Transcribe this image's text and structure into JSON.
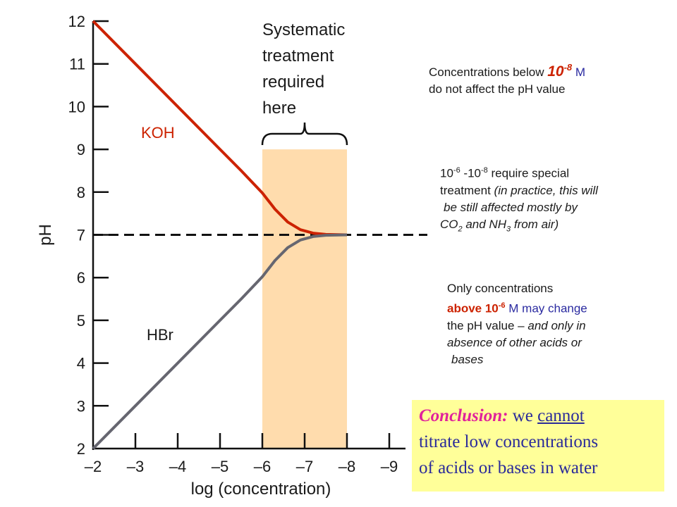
{
  "chart_data": {
    "type": "line",
    "xlabel": "log (concentration)",
    "ylabel": "pH",
    "x_ticks": [
      "–2",
      "–3",
      "–4",
      "–5",
      "–6",
      "–7",
      "–8",
      "–9"
    ],
    "x_tick_values": [
      -2,
      -3,
      -4,
      -5,
      -6,
      -7,
      -8,
      -9
    ],
    "y_ticks": [
      "2",
      "3",
      "4",
      "5",
      "6",
      "7",
      "8",
      "9",
      "10",
      "11",
      "12"
    ],
    "y_tick_values": [
      2,
      3,
      4,
      5,
      6,
      7,
      8,
      9,
      10,
      11,
      12
    ],
    "xlim": [
      -2,
      -9
    ],
    "ylim": [
      2,
      12
    ],
    "series": [
      {
        "name": "KOH",
        "color": "#cc2200",
        "x": [
          -2,
          -3,
          -4,
          -5,
          -5.5,
          -6,
          -6.3,
          -6.6,
          -6.9,
          -7.2,
          -7.5,
          -8
        ],
        "y": [
          12,
          11,
          10,
          9,
          8.5,
          7.98,
          7.6,
          7.3,
          7.12,
          7.04,
          7.01,
          7.0
        ]
      },
      {
        "name": "HBr",
        "color": "#666670",
        "x": [
          -2,
          -3,
          -4,
          -5,
          -5.5,
          -6,
          -6.3,
          -6.6,
          -6.9,
          -7.2,
          -7.5,
          -8
        ],
        "y": [
          2,
          3,
          4,
          5,
          5.5,
          6.02,
          6.4,
          6.7,
          6.88,
          6.96,
          6.99,
          7.0
        ]
      }
    ],
    "reference_line": {
      "y": 7,
      "style": "dashed",
      "x_end": -9.9
    },
    "shaded_band": {
      "x_from": -6,
      "x_to": -8,
      "color": "#ffdcad",
      "y_top": 9,
      "label": [
        "Systematic",
        "treatment",
        "required",
        "here"
      ]
    }
  },
  "notes": {
    "n1": {
      "line1_pre": "Concentrations below ",
      "line1_base": "10",
      "line1_exp": "-8",
      "line1_unit": " M",
      "line2": "do not affect the pH value"
    },
    "n2": {
      "l1_base1": "10",
      "l1_exp1": "-6",
      "l1_mid": " -10",
      "l1_exp2": "-8",
      "l1_rest": " require special",
      "l2_pre": "treatment ",
      "l2_it": "(in practice, this will",
      "l3": "be still affected mostly by",
      "l4_a": "CO",
      "l4_sub1": "2",
      "l4_b": " and NH",
      "l4_sub2": "3",
      "l4_c": " from air)"
    },
    "n3": {
      "l1": "Only concentrations",
      "l2_red": "above 10",
      "l2_exp": "-6",
      "l2_rest": " M may change",
      "l3_pre": "the pH value – ",
      "l3_it": "and only in",
      "l4": "absence of other acids or",
      "l5": "bases"
    }
  },
  "conclusion": {
    "lead": "Conclusion:",
    "t1": " we ",
    "underlined": "cannot",
    "line2": "titrate low concentrations",
    "line3": "of acids or bases in water"
  },
  "colors": {
    "band": "#ffdcad",
    "koh": "#cc2200",
    "hbr": "#666670",
    "conclusion_bg": "#ffff99"
  }
}
